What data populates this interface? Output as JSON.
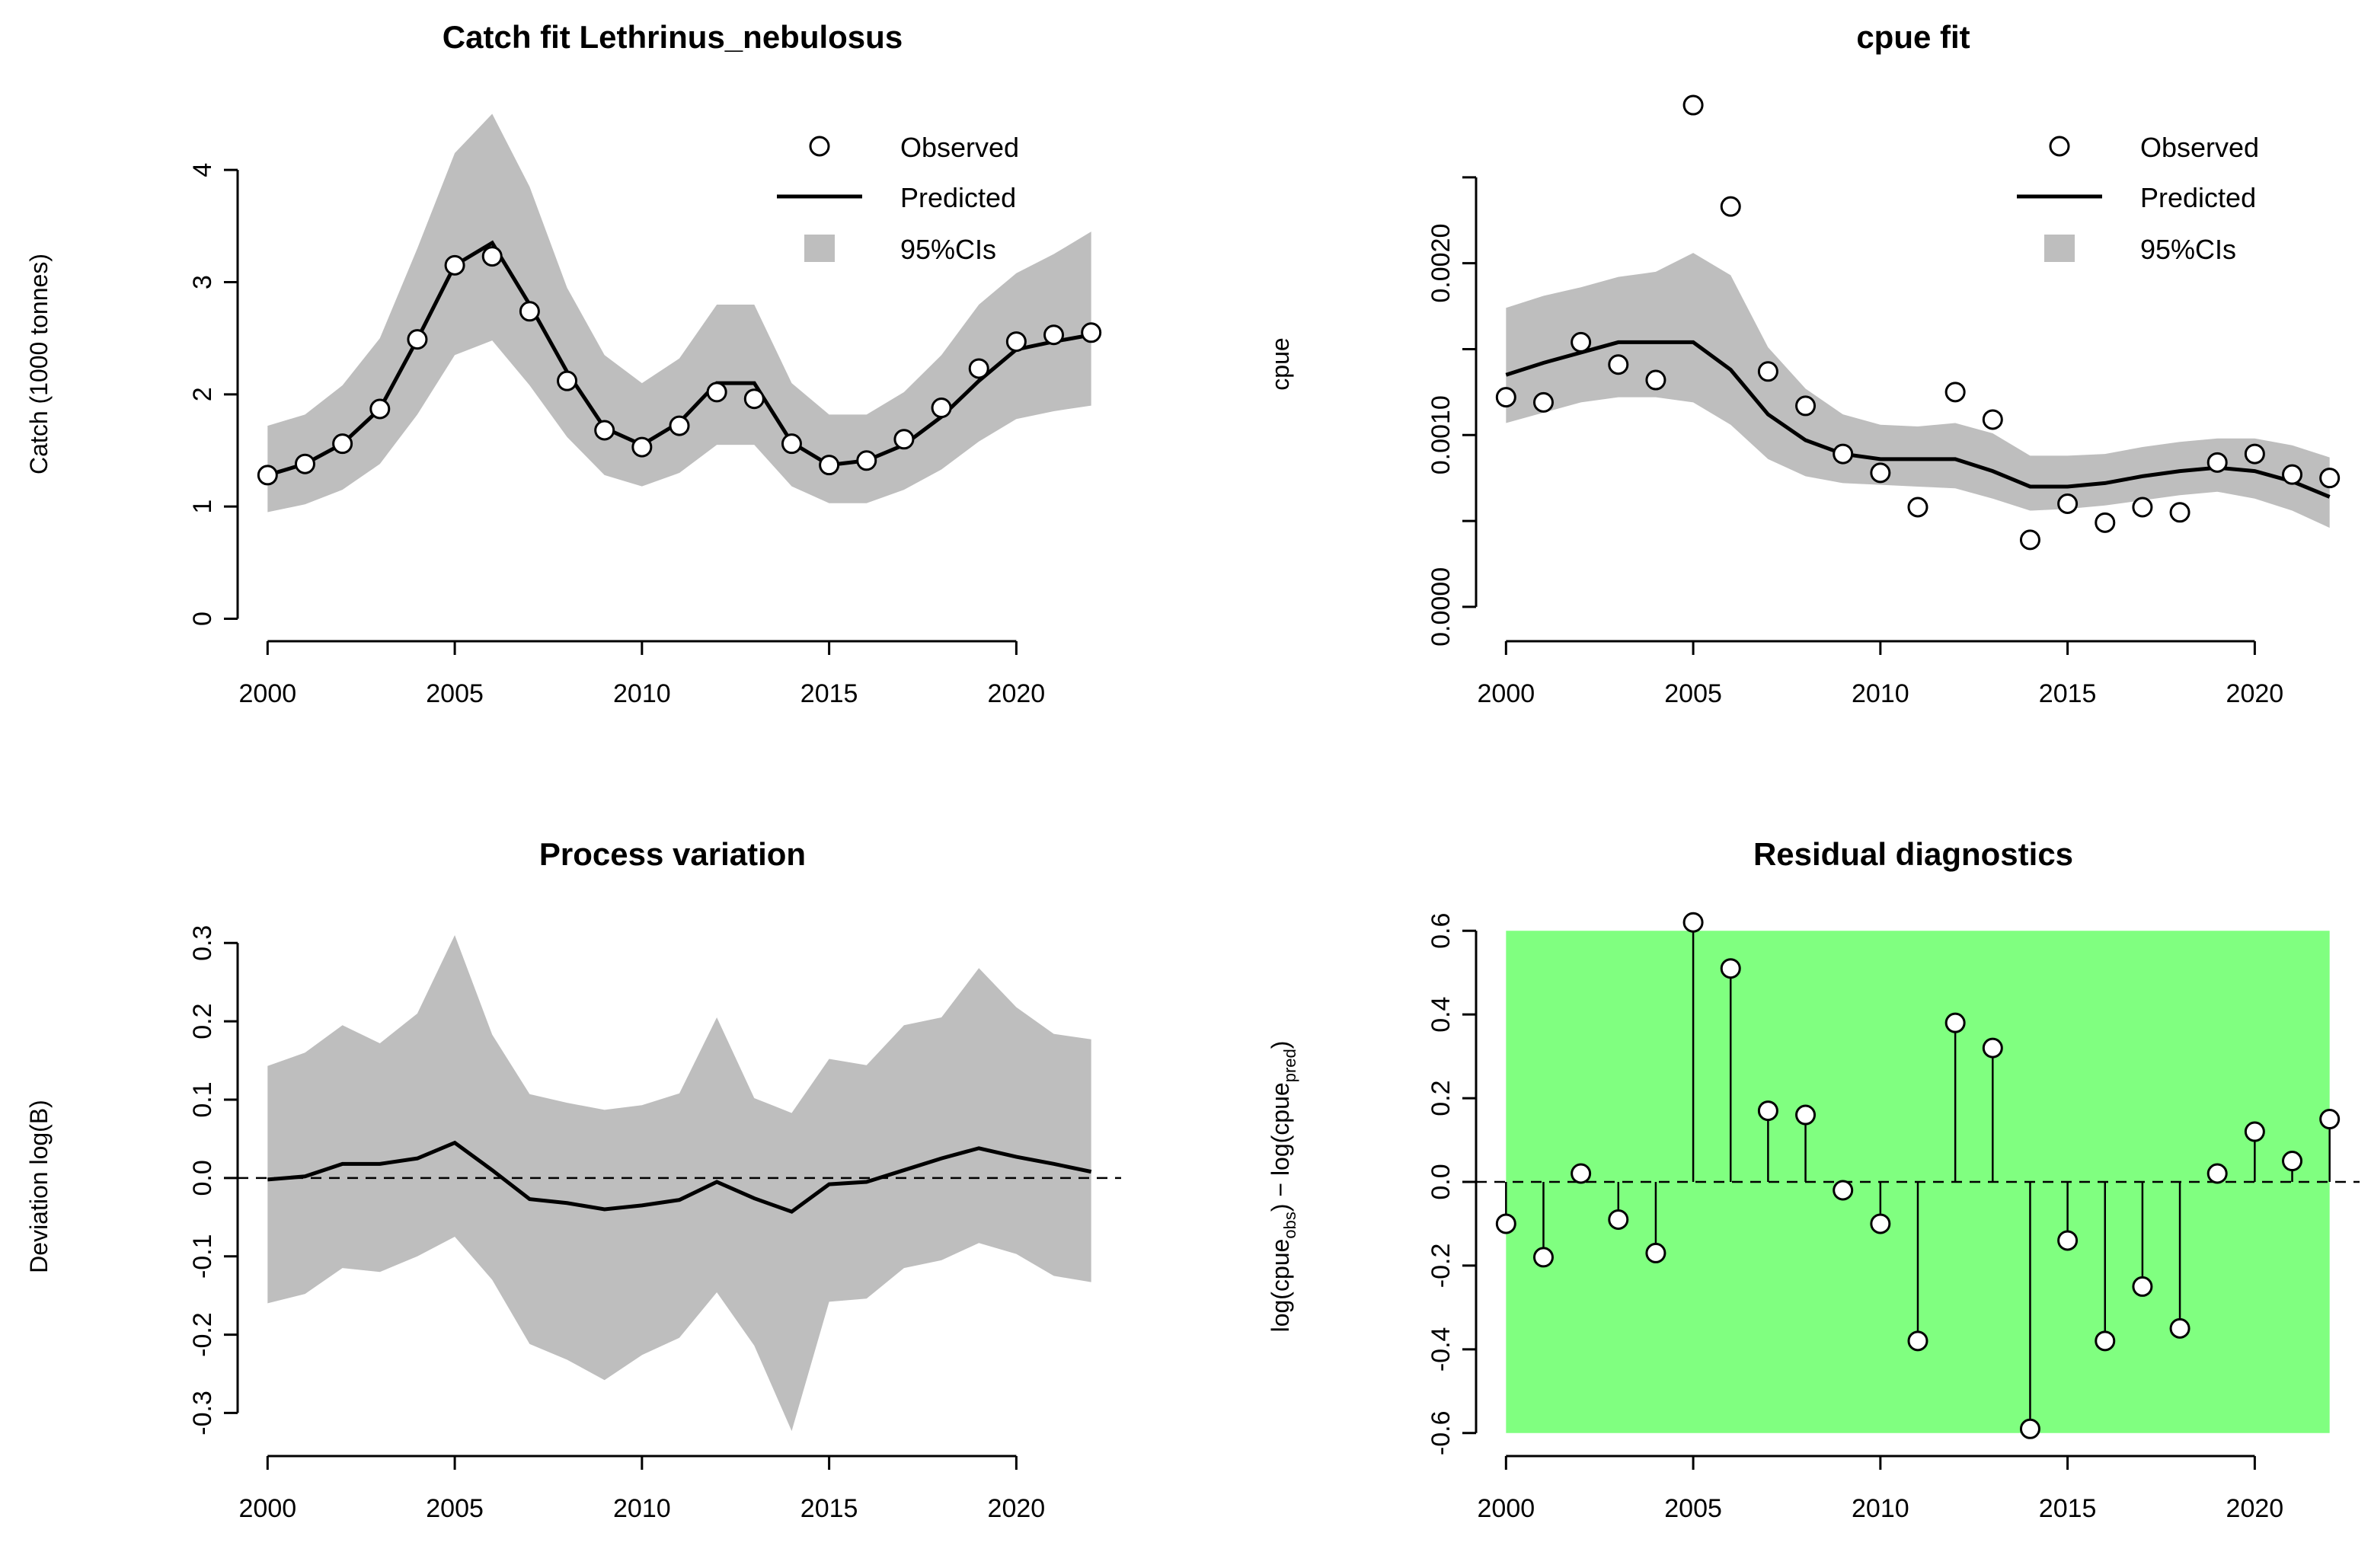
{
  "chart_data": [
    {
      "id": "catch",
      "type": "line",
      "title": "Catch fit Lethrinus_nebulosus",
      "xlabel": "",
      "ylabel": "Catch (1000 tonnes)",
      "xlim": [
        1999.2,
        2022.8
      ],
      "ylim": [
        -0.2,
        4.7
      ],
      "xticks": [
        2000,
        2005,
        2010,
        2015,
        2020
      ],
      "yticks": [
        0,
        1,
        2,
        3,
        4
      ],
      "yticklabels": [
        "0",
        "1",
        "2",
        "3",
        "4"
      ],
      "legend": {
        "position": "top-right",
        "observed": "Observed",
        "predicted": "Predicted",
        "ci": "95%CIs"
      },
      "x": [
        2000,
        2001,
        2002,
        2003,
        2004,
        2005,
        2006,
        2007,
        2008,
        2009,
        2010,
        2011,
        2012,
        2013,
        2014,
        2015,
        2016,
        2017,
        2018,
        2019,
        2020,
        2021,
        2022
      ],
      "observed": [
        1.28,
        1.38,
        1.56,
        1.87,
        2.49,
        3.15,
        3.23,
        2.74,
        2.12,
        1.68,
        1.53,
        1.72,
        2.02,
        1.96,
        1.56,
        1.37,
        1.41,
        1.6,
        1.88,
        2.23,
        2.47,
        2.53,
        2.55
      ],
      "predicted": [
        1.28,
        1.38,
        1.56,
        1.87,
        2.49,
        3.15,
        3.35,
        2.8,
        2.2,
        1.7,
        1.55,
        1.75,
        2.1,
        2.1,
        1.57,
        1.37,
        1.41,
        1.55,
        1.8,
        2.12,
        2.4,
        2.47,
        2.53
      ],
      "lower": [
        0.95,
        1.02,
        1.15,
        1.38,
        1.82,
        2.35,
        2.48,
        2.08,
        1.62,
        1.28,
        1.18,
        1.3,
        1.55,
        1.55,
        1.18,
        1.03,
        1.03,
        1.15,
        1.33,
        1.58,
        1.78,
        1.85,
        1.9
      ],
      "upper": [
        1.72,
        1.82,
        2.08,
        2.5,
        3.3,
        4.15,
        4.5,
        3.85,
        2.95,
        2.35,
        2.1,
        2.32,
        2.8,
        2.8,
        2.1,
        1.82,
        1.82,
        2.02,
        2.35,
        2.8,
        3.08,
        3.25,
        3.45
      ]
    },
    {
      "id": "cpue",
      "type": "line",
      "title": "cpue fit",
      "xlabel": "",
      "ylabel": "cpue",
      "xlim": [
        1999.2,
        2022.8
      ],
      "ylim": [
        -0.0002,
        0.003
      ],
      "xticks": [
        2000,
        2005,
        2010,
        2015,
        2020
      ],
      "yticks": [
        0.0,
        0.0005,
        0.001,
        0.0015,
        0.002,
        0.0025
      ],
      "yticklabels": [
        "0.0000",
        "",
        "0.0010",
        "",
        "0.0020",
        ""
      ],
      "legend": {
        "position": "top-right",
        "observed": "Observed",
        "predicted": "Predicted",
        "ci": "95%CIs"
      },
      "x": [
        2000,
        2001,
        2002,
        2003,
        2004,
        2005,
        2006,
        2007,
        2008,
        2009,
        2010,
        2011,
        2012,
        2013,
        2014,
        2015,
        2016,
        2017,
        2018,
        2019,
        2020,
        2021,
        2022
      ],
      "observed": [
        0.00122,
        0.00119,
        0.00154,
        0.00141,
        0.00132,
        0.00292,
        0.00233,
        0.00137,
        0.00117,
        0.00089,
        0.00078,
        0.00058,
        0.00125,
        0.00109,
        0.00039,
        0.0006,
        0.00049,
        0.00058,
        0.00055,
        0.00084,
        0.00089,
        0.00077,
        0.00075
      ],
      "predicted": [
        0.00135,
        0.00142,
        0.00148,
        0.00154,
        0.00154,
        0.00154,
        0.00138,
        0.00112,
        0.00097,
        0.00089,
        0.00086,
        0.00086,
        0.00086,
        0.00079,
        0.0007,
        0.0007,
        0.00072,
        0.00076,
        0.00079,
        0.00081,
        0.00079,
        0.00073,
        0.00064
      ],
      "lower": [
        0.00107,
        0.00113,
        0.00119,
        0.00122,
        0.00122,
        0.00119,
        0.00106,
        0.00086,
        0.00076,
        0.00072,
        0.00071,
        0.0007,
        0.00069,
        0.00063,
        0.00056,
        0.00057,
        0.00059,
        0.00062,
        0.00065,
        0.00067,
        0.00063,
        0.00056,
        0.00046
      ],
      "upper": [
        0.00174,
        0.00181,
        0.00186,
        0.00192,
        0.00195,
        0.00206,
        0.00193,
        0.00151,
        0.00127,
        0.00112,
        0.00106,
        0.00105,
        0.00107,
        0.00101,
        0.00088,
        0.00088,
        0.00089,
        0.00093,
        0.00096,
        0.00098,
        0.00098,
        0.00094,
        0.00087
      ]
    },
    {
      "id": "process",
      "type": "line",
      "title": "Process variation",
      "xlabel": "",
      "ylabel": "Deviation log(B)",
      "xlim": [
        1999.2,
        2022.8
      ],
      "ylim": [
        -0.355,
        0.345
      ],
      "xticks": [
        2000,
        2005,
        2010,
        2015,
        2020
      ],
      "yticks": [
        -0.3,
        -0.2,
        -0.1,
        0.0,
        0.1,
        0.2,
        0.3
      ],
      "yticklabels": [
        "-0.3",
        "-0.2",
        "-0.1",
        "0.0",
        "0.1",
        "0.2",
        "0.3"
      ],
      "x": [
        2000,
        2001,
        2002,
        2003,
        2004,
        2005,
        2006,
        2007,
        2008,
        2009,
        2010,
        2011,
        2012,
        2013,
        2014,
        2015,
        2016,
        2017,
        2018,
        2019,
        2020,
        2021,
        2022
      ],
      "predicted": [
        -0.002,
        0.002,
        0.018,
        0.018,
        0.025,
        0.045,
        0.01,
        -0.027,
        -0.032,
        -0.04,
        -0.035,
        -0.028,
        -0.005,
        -0.026,
        -0.043,
        -0.008,
        -0.005,
        0.01,
        0.025,
        0.038,
        0.027,
        0.018,
        0.008
      ],
      "lower": [
        -0.16,
        -0.148,
        -0.115,
        -0.12,
        -0.1,
        -0.075,
        -0.13,
        -0.212,
        -0.232,
        -0.258,
        -0.226,
        -0.204,
        -0.146,
        -0.214,
        -0.323,
        -0.158,
        -0.154,
        -0.115,
        -0.105,
        -0.083,
        -0.097,
        -0.125,
        -0.133
      ],
      "upper": [
        0.143,
        0.16,
        0.195,
        0.172,
        0.21,
        0.31,
        0.183,
        0.107,
        0.096,
        0.087,
        0.093,
        0.108,
        0.205,
        0.102,
        0.083,
        0.152,
        0.144,
        0.195,
        0.205,
        0.268,
        0.218,
        0.184,
        0.177
      ]
    },
    {
      "id": "residuals",
      "type": "scatter",
      "title": "Residual diagnostics",
      "xlabel": "",
      "ylabel": "log(cpueobs) - log(cpuepred)",
      "ylabel_parts": {
        "p1": "log(cpue",
        "sub1": "obs",
        "p2": ") − log(cpue",
        "sub2": "pred",
        "p3": ")"
      },
      "xlim": [
        1999.2,
        2022.8
      ],
      "ylim": [
        -0.655,
        0.655
      ],
      "xticks": [
        2000,
        2005,
        2010,
        2015,
        2020
      ],
      "yticks": [
        -0.6,
        -0.4,
        -0.2,
        0.0,
        0.2,
        0.4,
        0.6
      ],
      "yticklabels": [
        "-0.6",
        "-0.4",
        "-0.2",
        "0.0",
        "0.2",
        "0.4",
        "0.6"
      ],
      "band": {
        "x0": 2000,
        "x1": 2022,
        "y0": -0.6,
        "y1": 0.6,
        "color": "#80ff80"
      },
      "outlier_color": "#c0504d",
      "x": [
        2000,
        2001,
        2002,
        2003,
        2004,
        2005,
        2006,
        2007,
        2008,
        2009,
        2010,
        2011,
        2012,
        2013,
        2014,
        2015,
        2016,
        2017,
        2018,
        2019,
        2020,
        2021,
        2022
      ],
      "residuals": [
        -0.1,
        -0.18,
        0.02,
        -0.09,
        -0.17,
        0.62,
        0.51,
        0.17,
        0.16,
        -0.02,
        -0.1,
        -0.38,
        0.38,
        0.32,
        -0.59,
        -0.14,
        -0.38,
        -0.25,
        -0.35,
        0.02,
        0.12,
        0.05,
        0.15
      ],
      "outliers": [
        false,
        false,
        false,
        false,
        false,
        true,
        false,
        false,
        false,
        false,
        false,
        false,
        false,
        false,
        false,
        false,
        false,
        false,
        false,
        false,
        false,
        false,
        false
      ]
    }
  ]
}
